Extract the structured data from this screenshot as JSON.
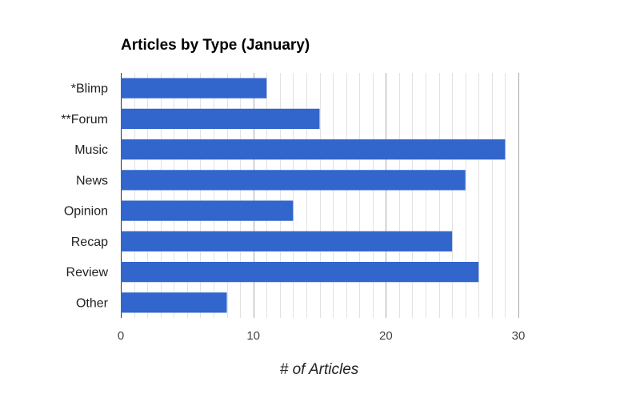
{
  "chart_data": {
    "type": "bar",
    "orientation": "horizontal",
    "title": "Articles by Type (January)",
    "xlabel": "# of Articles",
    "ylabel": "",
    "categories": [
      "*Blimp",
      "**Forum",
      "Music",
      "News",
      "Opinion",
      "Recap",
      "Review",
      "Other"
    ],
    "values": [
      11,
      15,
      29,
      26,
      13,
      25,
      27,
      8
    ],
    "xlim": [
      0,
      30
    ],
    "xticks": [
      0,
      10,
      20,
      30
    ],
    "minor_gridline_step": 1,
    "grid": true,
    "legend": "none",
    "colors": {
      "bar": "#3366cc",
      "major_grid": "#a8a8a8",
      "minor_grid": "#e2e2e2"
    }
  }
}
